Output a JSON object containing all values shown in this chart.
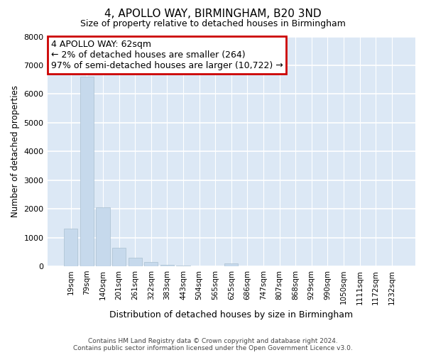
{
  "title": "4, APOLLO WAY, BIRMINGHAM, B20 3ND",
  "subtitle": "Size of property relative to detached houses in Birmingham",
  "xlabel": "Distribution of detached houses by size in Birmingham",
  "ylabel": "Number of detached properties",
  "categories": [
    "19sqm",
    "79sqm",
    "140sqm",
    "201sqm",
    "261sqm",
    "322sqm",
    "383sqm",
    "443sqm",
    "504sqm",
    "565sqm",
    "625sqm",
    "686sqm",
    "747sqm",
    "807sqm",
    "868sqm",
    "929sqm",
    "990sqm",
    "1050sqm",
    "1111sqm",
    "1172sqm",
    "1232sqm"
  ],
  "values": [
    1320,
    6600,
    2050,
    650,
    310,
    150,
    55,
    20,
    5,
    5,
    100,
    0,
    0,
    0,
    0,
    0,
    0,
    0,
    0,
    0,
    0
  ],
  "bar_color": "#c6d9ec",
  "bar_edge_color": "#aabfcf",
  "annotation_box_text": "4 APOLLO WAY: 62sqm\n← 2% of detached houses are smaller (264)\n97% of semi-detached houses are larger (10,722) →",
  "annotation_box_color": "#ffffff",
  "annotation_box_edge_color": "#cc0000",
  "ylim": [
    0,
    8000
  ],
  "yticks": [
    0,
    1000,
    2000,
    3000,
    4000,
    5000,
    6000,
    7000,
    8000
  ],
  "background_color": "#dce8f5",
  "plot_bg_color": "#dce8f5",
  "fig_bg_color": "#ffffff",
  "grid_color": "#ffffff",
  "footer_line1": "Contains HM Land Registry data © Crown copyright and database right 2024.",
  "footer_line2": "Contains public sector information licensed under the Open Government Licence v3.0."
}
